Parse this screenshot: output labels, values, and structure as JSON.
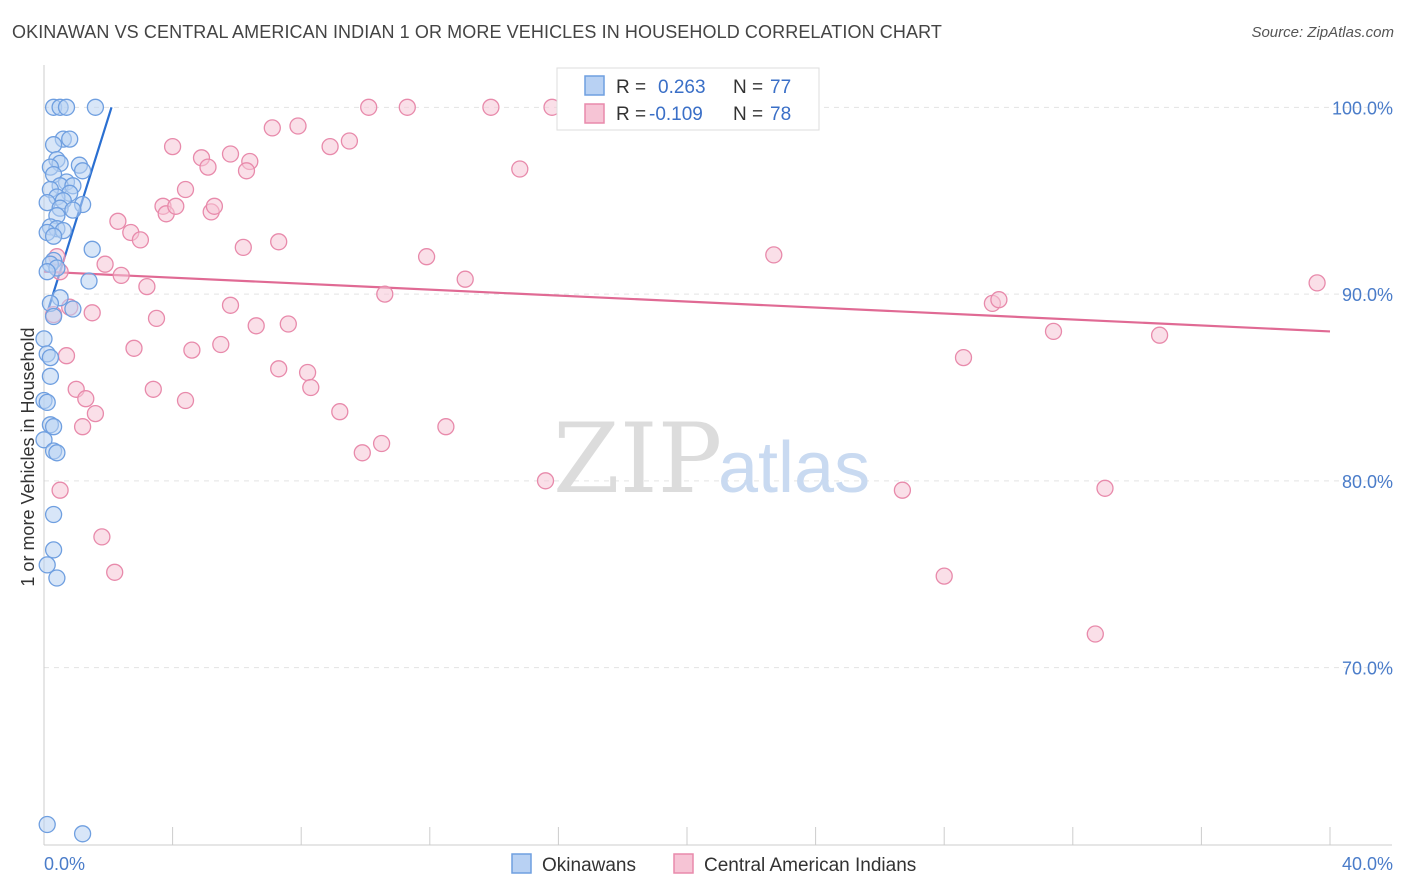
{
  "header": {
    "title": "OKINAWAN VS CENTRAL AMERICAN INDIAN 1 OR MORE VEHICLES IN HOUSEHOLD CORRELATION CHART",
    "source": "Source: ZipAtlas.com"
  },
  "watermark": {
    "zip": "ZIP",
    "atlas": "atlas"
  },
  "chart_data": {
    "type": "scatter",
    "title": "OKINAWAN VS CENTRAL AMERICAN INDIAN 1 OR MORE VEHICLES IN HOUSEHOLD CORRELATION CHART",
    "xlabel": "",
    "ylabel": "1 or more Vehicles in Household",
    "xlim": [
      0,
      40
    ],
    "ylim": [
      60.5,
      102
    ],
    "x_tick_labels": [
      "0.0%",
      "40.0%"
    ],
    "y_ticks": [
      70,
      80,
      90,
      100
    ],
    "y_tick_labels": [
      "70.0%",
      "80.0%",
      "90.0%",
      "100.0%"
    ],
    "grid": true,
    "legend_position": "bottom-center",
    "stats": [
      {
        "r_label": "R =",
        "r_value": "0.263",
        "n_label": "N =",
        "n_value": "77"
      },
      {
        "r_label": "R =",
        "r_value": "-0.109",
        "n_label": "N =",
        "n_value": "78"
      }
    ],
    "series": [
      {
        "name": "Okinawans",
        "color": "#6f9fe0",
        "fill": "#b8d1f3",
        "trend": {
          "x": [
            0.1,
            2.1
          ],
          "y": [
            89.0,
            100.0
          ],
          "color": "#2a6fd1"
        },
        "points": [
          [
            0.3,
            100.0
          ],
          [
            0.5,
            100.0
          ],
          [
            0.7,
            100.0
          ],
          [
            1.6,
            100.0
          ],
          [
            0.6,
            98.3
          ],
          [
            0.8,
            98.3
          ],
          [
            0.3,
            98.0
          ],
          [
            0.4,
            97.2
          ],
          [
            0.5,
            97.0
          ],
          [
            0.2,
            96.8
          ],
          [
            1.1,
            96.9
          ],
          [
            1.2,
            96.6
          ],
          [
            0.3,
            96.4
          ],
          [
            0.7,
            96.0
          ],
          [
            0.5,
            95.8
          ],
          [
            0.9,
            95.8
          ],
          [
            0.2,
            95.6
          ],
          [
            0.8,
            95.4
          ],
          [
            0.4,
            95.2
          ],
          [
            0.6,
            95.0
          ],
          [
            0.1,
            94.9
          ],
          [
            1.2,
            94.8
          ],
          [
            0.5,
            94.6
          ],
          [
            0.9,
            94.5
          ],
          [
            0.4,
            94.2
          ],
          [
            0.2,
            93.6
          ],
          [
            0.4,
            93.5
          ],
          [
            0.6,
            93.4
          ],
          [
            0.1,
            93.3
          ],
          [
            0.3,
            93.1
          ],
          [
            1.5,
            92.4
          ],
          [
            0.3,
            91.8
          ],
          [
            0.2,
            91.6
          ],
          [
            0.4,
            91.4
          ],
          [
            0.1,
            91.2
          ],
          [
            1.4,
            90.7
          ],
          [
            0.5,
            89.8
          ],
          [
            0.2,
            89.5
          ],
          [
            0.9,
            89.2
          ],
          [
            0.3,
            88.8
          ],
          [
            0.0,
            87.6
          ],
          [
            0.1,
            86.8
          ],
          [
            0.2,
            86.6
          ],
          [
            0.2,
            85.6
          ],
          [
            0.0,
            84.3
          ],
          [
            0.1,
            84.2
          ],
          [
            0.2,
            83.0
          ],
          [
            0.3,
            82.9
          ],
          [
            0.0,
            82.2
          ],
          [
            0.3,
            81.6
          ],
          [
            0.4,
            81.5
          ],
          [
            0.3,
            78.2
          ],
          [
            0.3,
            76.3
          ],
          [
            0.1,
            75.5
          ],
          [
            0.4,
            74.8
          ],
          [
            0.1,
            61.6
          ],
          [
            1.2,
            61.1
          ]
        ]
      },
      {
        "name": "Central American Indians",
        "color": "#e88aab",
        "fill": "#f6c4d5",
        "trend": {
          "x": [
            0.0,
            40.0
          ],
          "y": [
            91.2,
            88.0
          ],
          "color": "#e06a94"
        },
        "points": [
          [
            10.1,
            100.0
          ],
          [
            11.3,
            100.0
          ],
          [
            13.9,
            100.0
          ],
          [
            15.8,
            100.0
          ],
          [
            17.1,
            100.0
          ],
          [
            18.7,
            100.0
          ],
          [
            22.6,
            100.0
          ],
          [
            7.1,
            98.9
          ],
          [
            7.9,
            99.0
          ],
          [
            9.5,
            98.2
          ],
          [
            8.9,
            97.9
          ],
          [
            4.0,
            97.9
          ],
          [
            5.8,
            97.5
          ],
          [
            4.9,
            97.3
          ],
          [
            6.4,
            97.1
          ],
          [
            6.3,
            96.6
          ],
          [
            5.1,
            96.8
          ],
          [
            14.8,
            96.7
          ],
          [
            4.4,
            95.6
          ],
          [
            3.7,
            94.7
          ],
          [
            3.8,
            94.3
          ],
          [
            4.1,
            94.7
          ],
          [
            5.2,
            94.4
          ],
          [
            5.3,
            94.7
          ],
          [
            2.3,
            93.9
          ],
          [
            2.7,
            93.3
          ],
          [
            3.0,
            92.9
          ],
          [
            6.2,
            92.5
          ],
          [
            7.3,
            92.8
          ],
          [
            11.9,
            92.0
          ],
          [
            22.7,
            92.1
          ],
          [
            1.9,
            91.6
          ],
          [
            2.4,
            91.0
          ],
          [
            3.2,
            90.4
          ],
          [
            13.1,
            90.8
          ],
          [
            10.6,
            90.0
          ],
          [
            5.8,
            89.4
          ],
          [
            1.5,
            89.0
          ],
          [
            3.5,
            88.7
          ],
          [
            6.6,
            88.3
          ],
          [
            7.6,
            88.4
          ],
          [
            29.5,
            89.5
          ],
          [
            29.7,
            89.7
          ],
          [
            31.4,
            88.0
          ],
          [
            34.7,
            87.8
          ],
          [
            39.6,
            90.6
          ],
          [
            2.8,
            87.1
          ],
          [
            4.6,
            87.0
          ],
          [
            5.5,
            87.3
          ],
          [
            0.7,
            86.7
          ],
          [
            7.3,
            86.0
          ],
          [
            8.2,
            85.8
          ],
          [
            28.6,
            86.6
          ],
          [
            3.4,
            84.9
          ],
          [
            8.3,
            85.0
          ],
          [
            1.0,
            84.9
          ],
          [
            1.3,
            84.4
          ],
          [
            4.4,
            84.3
          ],
          [
            1.6,
            83.6
          ],
          [
            9.2,
            83.7
          ],
          [
            1.2,
            82.9
          ],
          [
            12.5,
            82.9
          ],
          [
            10.5,
            82.0
          ],
          [
            9.9,
            81.5
          ],
          [
            15.6,
            80.0
          ],
          [
            26.7,
            79.5
          ],
          [
            33.0,
            79.6
          ],
          [
            0.5,
            79.5
          ],
          [
            1.8,
            77.0
          ],
          [
            2.2,
            75.1
          ],
          [
            28.0,
            74.9
          ],
          [
            32.7,
            71.8
          ],
          [
            0.4,
            92.0
          ],
          [
            0.8,
            89.3
          ],
          [
            0.5,
            91.2
          ],
          [
            0.3,
            88.9
          ]
        ]
      }
    ]
  }
}
